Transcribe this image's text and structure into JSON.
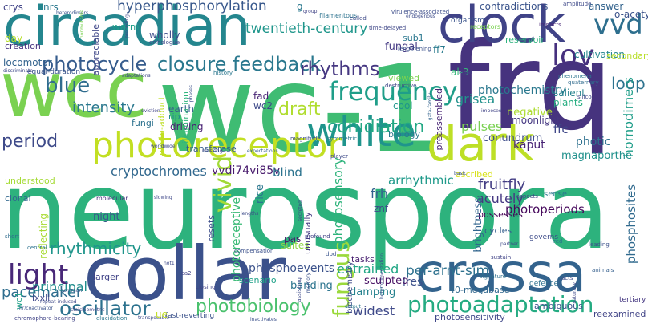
{
  "words": [
    {
      "id": "wc-1",
      "text": "wc-1",
      "color": "#3fbc73"
    },
    {
      "id": "neurospora",
      "text": "neurospora",
      "color": "#2db27d"
    },
    {
      "id": "frq",
      "text": "frq",
      "color": "#46337e"
    },
    {
      "id": "circadian",
      "text": "circadian",
      "color": "#24868e"
    },
    {
      "id": "wcc",
      "text": "wcc",
      "color": "#7ad151"
    },
    {
      "id": "collar",
      "text": "collar",
      "color": "#3b518b"
    },
    {
      "id": "crassa",
      "text": "crassa",
      "color": "#33638d"
    },
    {
      "id": "clock",
      "text": "clock",
      "color": "#404387"
    },
    {
      "id": "dark",
      "text": "dark",
      "color": "#bddf26"
    },
    {
      "id": "white",
      "text": "white",
      "color": "#1f948c"
    },
    {
      "id": "photoreceptor",
      "text": "photoreceptor",
      "color": "#c2df23"
    },
    {
      "id": "vvd",
      "text": "vvd",
      "color": "#2e6f8e"
    },
    {
      "id": "lov",
      "text": "lov",
      "color": "#46307e"
    },
    {
      "id": "frequency",
      "text": "frequency",
      "color": "#1f9e89"
    },
    {
      "id": "photocycle",
      "text": "photocycle",
      "color": "#365c8d"
    },
    {
      "id": "closure-feedback",
      "text": "closure feedback",
      "color": "#2a788e"
    },
    {
      "id": "photoadaptation",
      "text": "photoadaptation",
      "color": "#25ab82"
    },
    {
      "id": "oscillator",
      "text": "oscillator",
      "color": "#2c728e"
    },
    {
      "id": "photobiology",
      "text": "photobiology",
      "color": "#4ac16d"
    },
    {
      "id": "light",
      "text": "light",
      "color": "#482878"
    },
    {
      "id": "blue",
      "text": "blue",
      "color": "#2f6c8e"
    },
    {
      "id": "rhythms",
      "text": "rhythms",
      "color": "#453781"
    },
    {
      "id": "conidiation",
      "text": "conidiation",
      "color": "#22a884"
    },
    {
      "id": "fungus",
      "text": "fungus",
      "color": "#9bd93c"
    },
    {
      "id": "vivid",
      "text": "vivid",
      "color": "#a2da37"
    },
    {
      "id": "draft",
      "text": "draft",
      "color": "#b0dd2f"
    },
    {
      "id": "twentieth-century",
      "text": "twentieth-century",
      "color": "#1f968b"
    },
    {
      "id": "hyperphosphorylation",
      "text": "hyperphosphorylation",
      "color": "#38588c"
    },
    {
      "id": "loop",
      "text": "loop",
      "color": "#2c728e"
    },
    {
      "id": "period",
      "text": "period",
      "color": "#3e4a89"
    },
    {
      "id": "intensity",
      "text": "intensity",
      "color": "#2a788e"
    },
    {
      "id": "rhythmicity",
      "text": "rhythmicity",
      "color": "#1f958b"
    },
    {
      "id": "pacemaker",
      "text": "pacemaker",
      "color": "#2e6d8e"
    },
    {
      "id": "principal",
      "text": "principal",
      "color": "#228d8d"
    },
    {
      "id": "per-arnt-sim",
      "text": "per-arnt-sim",
      "color": "#2d718e"
    },
    {
      "id": "entrained",
      "text": "entrained",
      "color": "#22a785"
    },
    {
      "id": "photosensory",
      "text": "photosensory",
      "color": "#2fb47c"
    },
    {
      "id": "cryptochromes",
      "text": "cryptochromes",
      "color": "#31688e"
    },
    {
      "id": "vvdi74vi85v",
      "text": "vvdi74vi85v",
      "color": "#481b6d"
    },
    {
      "id": "photoreceptive",
      "text": "photoreceptive",
      "color": "#3aba76"
    },
    {
      "id": "fruitfly",
      "text": "fruitfly",
      "color": "#433d84"
    },
    {
      "id": "damping",
      "text": "damping",
      "color": "#26828e"
    },
    {
      "id": "widest",
      "text": "widest",
      "color": "#3e4989"
    },
    {
      "id": "lres",
      "text": "lres",
      "color": "#3c508b"
    },
    {
      "id": "photoperiods",
      "text": "photoperiods",
      "color": "#46085c"
    },
    {
      "id": "phosphoevents",
      "text": "phosphoevents",
      "color": "#3b528b"
    },
    {
      "id": "arrhythmic",
      "text": "arrhythmic",
      "color": "#1f9a8a"
    },
    {
      "id": "blind",
      "text": "blind",
      "color": "#2c738e"
    },
    {
      "id": "homodimers",
      "text": "homodimers",
      "color": "#1f9e89"
    },
    {
      "id": "grisea",
      "text": "grisea",
      "color": "#21918c"
    },
    {
      "id": "fungal",
      "text": "fungal",
      "color": "#443983"
    },
    {
      "id": "phosphosites",
      "text": "phosphosites",
      "color": "#306a8e"
    },
    {
      "id": "photochemistry",
      "text": "photochemistry",
      "color": "#2a788e"
    },
    {
      "id": "pulses",
      "text": "pulses",
      "color": "#7ad151"
    },
    {
      "id": "negative",
      "text": "negative",
      "color": "#addc30"
    },
    {
      "id": "kaput",
      "text": "kaput",
      "color": "#482475"
    },
    {
      "id": "ffc",
      "text": "ffc",
      "color": "#3f4788"
    },
    {
      "id": "photic",
      "text": "photic",
      "color": "#2d708e"
    },
    {
      "id": "magnaporthe",
      "text": "magnaporthe",
      "color": "#21918c"
    },
    {
      "id": "sculpted",
      "text": "sculpted",
      "color": "#471063"
    },
    {
      "id": "tasks",
      "text": "tasks",
      "color": "#481f70"
    },
    {
      "id": "banding",
      "text": "banding",
      "color": "#2b748e"
    },
    {
      "id": "scenario",
      "text": "scenario",
      "color": "#1fa188"
    },
    {
      "id": "frh",
      "text": "frh",
      "color": "#33628d"
    },
    {
      "id": "acutely",
      "text": "acutely",
      "color": "#453882"
    },
    {
      "id": "possesses",
      "text": "possesses",
      "color": "#440154"
    },
    {
      "id": "cycles",
      "text": "cycles",
      "color": "#355f8d"
    },
    {
      "id": "brightness",
      "text": "brightness",
      "color": "#32658e"
    },
    {
      "id": "ascribed",
      "text": "ascribed",
      "color": "#d8e219"
    },
    {
      "id": "conundrum",
      "text": "conundrum",
      "color": "#3e4c8a"
    },
    {
      "id": "crys",
      "text": "crys",
      "color": "#414487"
    },
    {
      "id": "nrs",
      "text": "nrs",
      "color": "#2a788e"
    },
    {
      "id": "warm",
      "text": "warm",
      "color": "#1f9e89"
    },
    {
      "id": "day",
      "text": "day",
      "color": "#b5de2b"
    },
    {
      "id": "creation",
      "text": "creation",
      "color": "#46327e"
    },
    {
      "id": "locomotor",
      "text": "locomotor",
      "color": "#33638d"
    },
    {
      "id": "wholly",
      "text": "wholly",
      "color": "#3d4d8a"
    },
    {
      "id": "fad",
      "text": "fad",
      "color": "#482475"
    },
    {
      "id": "wc2",
      "text": "wc2",
      "color": "#3e4a89"
    },
    {
      "id": "cool",
      "text": "cool",
      "color": "#1f958b"
    },
    {
      "id": "fungi",
      "text": "fungi",
      "color": "#2c718e"
    },
    {
      "id": "earth",
      "text": "earth",
      "color": "#365d8d"
    },
    {
      "id": "rip",
      "text": "rip",
      "color": "#23898e"
    },
    {
      "id": "driving",
      "text": "driving",
      "color": "#482173"
    },
    {
      "id": "night",
      "text": "night",
      "color": "#39568c"
    },
    {
      "id": "clonal",
      "text": "clonal",
      "color": "#31688e"
    },
    {
      "id": "understood",
      "text": "understood",
      "color": "#a5db36"
    },
    {
      "id": "znf",
      "text": "znf",
      "color": "#3f4889"
    },
    {
      "id": "rice",
      "text": "rice",
      "color": "#2a768e"
    },
    {
      "id": "resets",
      "text": "resets",
      "color": "#3d4e8a"
    },
    {
      "id": "pas",
      "text": "pas",
      "color": "#481467"
    },
    {
      "id": "suites",
      "text": "suites",
      "color": "#8ed645"
    },
    {
      "id": "unusually",
      "text": "unusually",
      "color": "#443a83"
    },
    {
      "id": "ff7",
      "text": "ff7",
      "color": "#297b8e"
    },
    {
      "id": "al-3",
      "text": "al-3",
      "color": "#35b779"
    },
    {
      "id": "sub1",
      "text": "sub1",
      "color": "#2a778e"
    },
    {
      "id": "reservoir",
      "text": "reservoir",
      "color": "#2db27d"
    },
    {
      "id": "cultivation",
      "text": "cultivation",
      "color": "#24868e"
    },
    {
      "id": "secondary",
      "text": "secondary",
      "color": "#b8de29"
    },
    {
      "id": "answer",
      "text": "answer",
      "color": "#33638d"
    },
    {
      "id": "o-acetyl",
      "text": "o-acetyl",
      "color": "#3b528b"
    },
    {
      "id": "contradictions",
      "text": "contradictions",
      "color": "#3a538b"
    },
    {
      "id": "moonlight",
      "text": "moonlight",
      "color": "#453781"
    },
    {
      "id": "plants",
      "text": "plants",
      "color": "#26ad81"
    },
    {
      "id": "salient",
      "text": "salient",
      "color": "#26828e"
    },
    {
      "id": "preassembled",
      "text": "preassembled",
      "color": "#482475"
    },
    {
      "id": "photo-adduct",
      "text": "photo-adduct",
      "color": "#c0df25"
    },
    {
      "id": "illumination",
      "text": "illumination",
      "color": "#2eb37c"
    },
    {
      "id": "biology",
      "text": "biology",
      "color": "#2a788e"
    },
    {
      "id": "viewed",
      "text": "viewed",
      "color": "#7cd250"
    },
    {
      "id": "equal-duration",
      "text": "equal-duration",
      "color": "#3a548c"
    },
    {
      "id": "appreciable",
      "text": "appreciable",
      "color": "#3f4788"
    },
    {
      "id": "orthologue",
      "text": "orthologue",
      "color": "#3e4a89"
    },
    {
      "id": "history",
      "text": "history",
      "color": "#2a778e"
    },
    {
      "id": "transferase",
      "text": "transferase",
      "color": "#355e8d"
    },
    {
      "id": "molecular",
      "text": "molecular",
      "color": "#46307e"
    },
    {
      "id": "reflecting",
      "text": "reflecting",
      "color": "#a8db34"
    },
    {
      "id": "larger",
      "text": "larger",
      "color": "#404387"
    },
    {
      "id": "lxxll",
      "text": "lxxll",
      "color": "#3f4889"
    },
    {
      "id": "wc1",
      "text": "wc1",
      "color": "#1fa188"
    },
    {
      "id": "40-megabase",
      "text": "40-megabase",
      "color": "#31688e"
    },
    {
      "id": "biochemistry",
      "text": "biochemistry",
      "color": "#3e4a89"
    },
    {
      "id": "photosensitivity",
      "text": "photosensitivity",
      "color": "#3f4788"
    },
    {
      "id": "ambiguous",
      "text": "ambiguous",
      "color": "#3b528b"
    },
    {
      "id": "reexamined",
      "text": "reexamined",
      "color": "#414487"
    },
    {
      "id": "defence",
      "text": "defence",
      "color": "#2d718e"
    },
    {
      "id": "tertiary",
      "text": "tertiary",
      "color": "#453781"
    },
    {
      "id": "sense",
      "text": "sense",
      "color": "#2a788e"
    },
    {
      "id": "governs",
      "text": "governs",
      "color": "#3e4c8a"
    },
    {
      "id": "fast-reverting",
      "text": "fast-reverting",
      "color": "#3b528b"
    },
    {
      "id": "closing",
      "text": "closing",
      "color": "#414487"
    },
    {
      "id": "organism",
      "text": "organism",
      "color": "#3a548c"
    },
    {
      "id": "receptors",
      "text": "receptors",
      "color": "#7ad151"
    },
    {
      "id": "virulence-associated",
      "text": "virulence-associated",
      "color": "#3d4e8a"
    },
    {
      "id": "filamentous",
      "text": "filamentous",
      "color": "#2c728e"
    },
    {
      "id": "called",
      "text": "called",
      "color": "#3e4a89"
    },
    {
      "id": "time-delayed",
      "text": "time-delayed",
      "color": "#3f4788"
    },
    {
      "id": "amplitude",
      "text": "amplitude",
      "color": "#3e4989"
    },
    {
      "id": "impacts",
      "text": "impacts",
      "color": "#482878"
    },
    {
      "id": "lengthening",
      "text": "lengthening",
      "color": "#3b518b"
    },
    {
      "id": "phenomena",
      "text": "phenomena",
      "color": "#2b758e"
    },
    {
      "id": "quaternary",
      "text": "quaternary",
      "color": "#2f6b8e"
    },
    {
      "id": "destructive",
      "text": "destructive",
      "color": "#3f4788"
    },
    {
      "id": "gata-family",
      "text": "gata-family",
      "color": "#33638d"
    },
    {
      "id": "symmetric",
      "text": "symmetric",
      "color": "#2a788e"
    },
    {
      "id": "player",
      "text": "player",
      "color": "#3e4a89"
    },
    {
      "id": "expectations",
      "text": "expectations",
      "color": "#355f8d"
    },
    {
      "id": "magnitude",
      "text": "magnitude",
      "color": "#3e4c8a"
    },
    {
      "id": "imposed",
      "text": "imposed",
      "color": "#414487"
    },
    {
      "id": "finger",
      "text": "finger",
      "color": "#404588"
    },
    {
      "id": "silico",
      "text": "silico",
      "color": "#3f4889"
    },
    {
      "id": "basic",
      "text": "basic",
      "color": "#3b528b"
    },
    {
      "id": "aspects",
      "text": "aspects",
      "color": "#414287"
    },
    {
      "id": "red",
      "text": "red",
      "color": "#2c728e"
    },
    {
      "id": "acts",
      "text": "acts",
      "color": "#3e4c8a"
    },
    {
      "id": "leading",
      "text": "leading",
      "color": "#3b518b"
    },
    {
      "id": "animals",
      "text": "animals",
      "color": "#355f8d"
    },
    {
      "id": "naturally",
      "text": "naturally",
      "color": "#3e4a89"
    },
    {
      "id": "signature",
      "text": "signature",
      "color": "#2e6f8e"
    },
    {
      "id": "heterodimerization",
      "text": "heterodimerization",
      "color": "#3b528b"
    },
    {
      "id": "sustain",
      "text": "sustain",
      "color": "#414487"
    },
    {
      "id": "partner",
      "text": "partner",
      "color": "#3e4a89"
    },
    {
      "id": "dbd",
      "text": "dbd",
      "color": "#3a548c"
    },
    {
      "id": "output",
      "text": "output",
      "color": "#2a788e"
    },
    {
      "id": "assisting",
      "text": "assisting",
      "color": "#3e4989"
    },
    {
      "id": "memory",
      "text": "memory",
      "color": "#3b528b"
    },
    {
      "id": "profound",
      "text": "profound",
      "color": "#414487"
    },
    {
      "id": "secreted",
      "text": "secreted",
      "color": "#3f4788"
    },
    {
      "id": "lengths",
      "text": "lengths",
      "color": "#3e4c8a"
    },
    {
      "id": "compensation",
      "text": "compensation",
      "color": "#3b518b"
    },
    {
      "id": "ca2",
      "text": "ca2",
      "color": "#404387"
    },
    {
      "id": "not1",
      "text": "not1",
      "color": "#3e4a89"
    },
    {
      "id": "slowing",
      "text": "slowing",
      "color": "#3f4889"
    },
    {
      "id": "central",
      "text": "central",
      "color": "#2c728e"
    },
    {
      "id": "short",
      "text": "short",
      "color": "#2f6c8e"
    },
    {
      "id": "repeat-induced",
      "text": "repeat-induced",
      "color": "#3e4a89"
    },
    {
      "id": "nr-coactivator",
      "text": "nr/coactivator",
      "color": "#3b528b"
    },
    {
      "id": "chromophore-bearing",
      "text": "chromophore-bearing",
      "color": "#414487"
    },
    {
      "id": "elucidation",
      "text": "elucidation",
      "color": "#2a788e"
    },
    {
      "id": "transposable",
      "text": "transposable",
      "color": "#3e4c8a"
    },
    {
      "id": "stoichiometric",
      "text": "stoichiometric",
      "color": "#3f4788"
    },
    {
      "id": "common",
      "text": "common",
      "color": "#3b528b"
    },
    {
      "id": "masking",
      "text": "masking",
      "color": "#414287"
    },
    {
      "id": "worldwide",
      "text": "worldwide",
      "color": "#3e4a89"
    },
    {
      "id": "phases",
      "text": "phases",
      "color": "#3b518b"
    },
    {
      "id": "eviction",
      "text": "eviction",
      "color": "#404588"
    },
    {
      "id": "adaptations",
      "text": "adaptations",
      "color": "#3f4889"
    },
    {
      "id": "discriminate",
      "text": "discriminate",
      "color": "#3e4989"
    },
    {
      "id": "heterodimers",
      "text": "heterodimers",
      "color": "#3a548c"
    },
    {
      "id": "nonmutable",
      "text": "nonmutable",
      "color": "#7ad151"
    },
    {
      "id": "preceding",
      "text": "preceding",
      "color": "#3f4788"
    },
    {
      "id": "group",
      "text": "group",
      "color": "#414487"
    },
    {
      "id": "endogenous",
      "text": "endogenous",
      "color": "#3e4c8a"
    },
    {
      "id": "inactivates",
      "text": "inactivates",
      "color": "#3b518b"
    },
    {
      "id": "g",
      "text": "g",
      "color": "#2a788e"
    },
    {
      "id": "ue",
      "text": "ue",
      "color": "#c2df23"
    }
  ]
}
